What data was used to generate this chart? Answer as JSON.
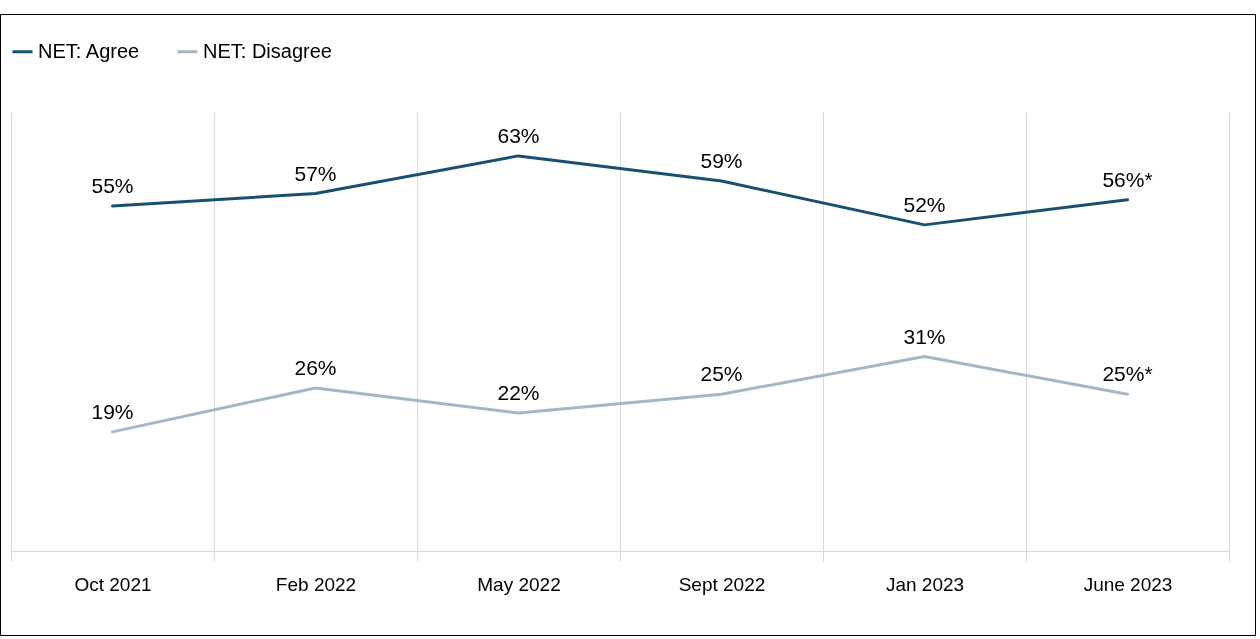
{
  "chart_data": {
    "type": "line",
    "categories": [
      "Oct 2021",
      "Feb 2022",
      "May 2022",
      "Sept 2022",
      "Jan 2023",
      "June 2023"
    ],
    "series": [
      {
        "name": "NET: Agree",
        "color": "#1b4f72",
        "values": [
          55,
          57,
          63,
          59,
          52,
          56
        ],
        "value_labels": [
          "55%",
          "57%",
          "63%",
          "59%",
          "52%",
          "56%*"
        ]
      },
      {
        "name": "NET: Disagree",
        "color": "#a3b8c6",
        "values": [
          19,
          26,
          22,
          25,
          31,
          25
        ],
        "value_labels": [
          "19%",
          "26%",
          "22%",
          "25%",
          "31%",
          "25%*"
        ]
      }
    ],
    "ylim": [
      0,
      70
    ],
    "grid": "x",
    "legend": "top",
    "tick_labels": "x"
  }
}
